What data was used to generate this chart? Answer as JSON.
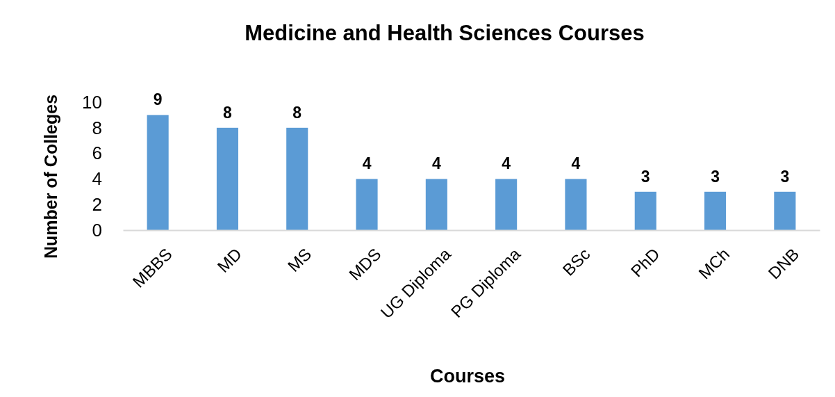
{
  "chart_data": {
    "type": "bar",
    "title": "Medicine and Health Sciences Courses",
    "xlabel": "Courses",
    "ylabel": "Number of Colleges",
    "categories": [
      "MBBS",
      "MD",
      "MS",
      "MDS",
      "UG Diploma",
      "PG Diploma",
      "BSc",
      "PhD",
      "MCh",
      "DNB"
    ],
    "values": [
      9,
      8,
      8,
      4,
      4,
      4,
      4,
      3,
      3,
      3
    ],
    "color": "#5b9bd5",
    "ylim": [
      0,
      10
    ],
    "yticks": [
      0,
      2,
      4,
      6,
      8,
      10
    ],
    "data_labels": true
  }
}
